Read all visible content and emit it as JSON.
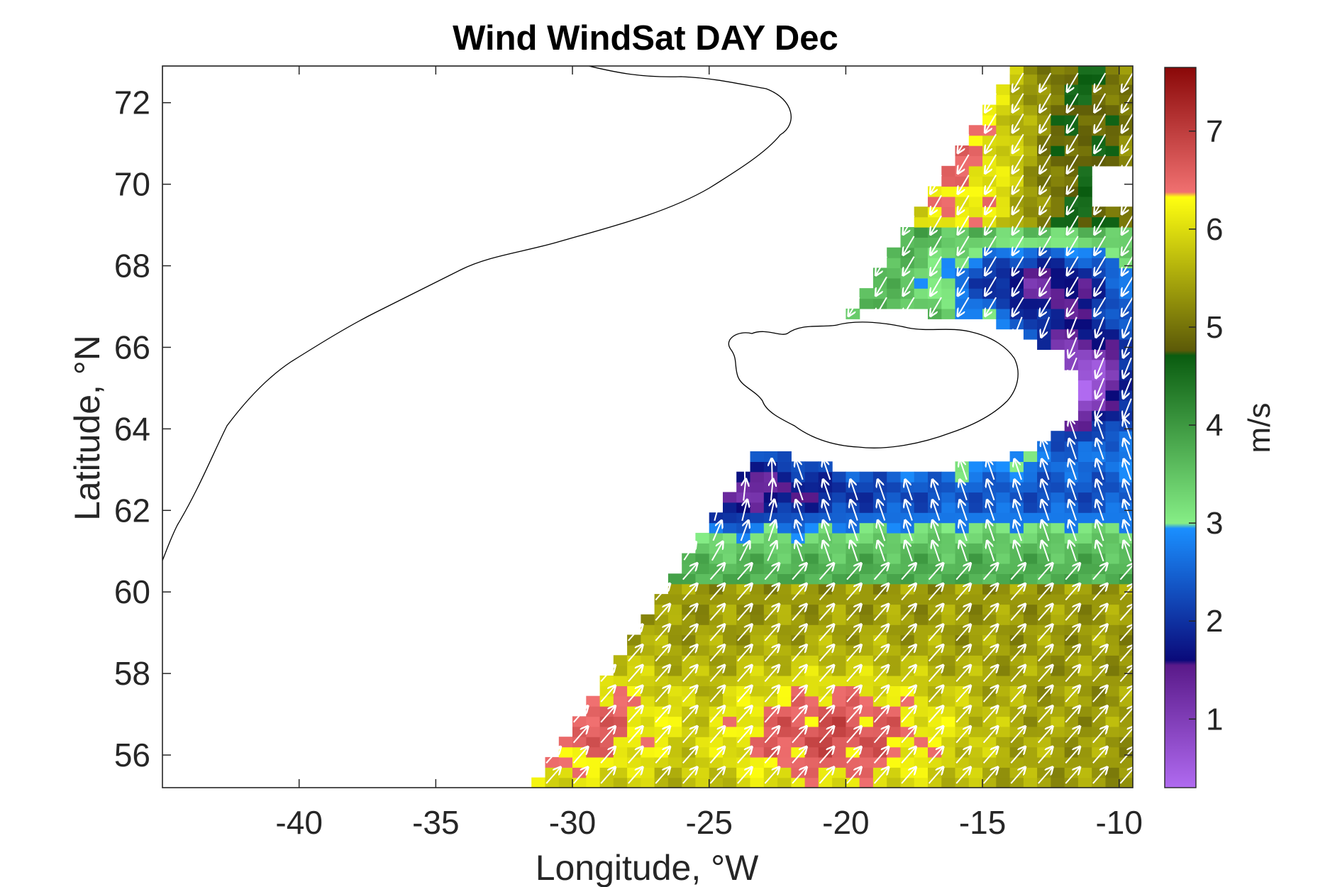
{
  "title": "Wind WindSat DAY Dec",
  "x_axis": {
    "label": "Longitude, °W",
    "ticks": [
      "-40",
      "-35",
      "-30",
      "-25",
      "-20",
      "-15",
      "-10"
    ],
    "range": [
      -45,
      -9.5
    ]
  },
  "y_axis": {
    "label": "Latitude, °N",
    "ticks": [
      "56",
      "58",
      "60",
      "62",
      "64",
      "66",
      "68",
      "70",
      "72"
    ],
    "range": [
      55.2,
      72.9
    ]
  },
  "colorbar": {
    "label": "m/s",
    "ticks": [
      "1",
      "2",
      "3",
      "4",
      "5",
      "6",
      "7"
    ],
    "range": [
      0.3,
      7.65
    ],
    "bands": [
      {
        "from": 0.3,
        "to": 1.6,
        "colors": [
          "#b06af0",
          "#5a1a8a"
        ]
      },
      {
        "from": 1.6,
        "to": 3.0,
        "colors": [
          "#0a0a7a",
          "#1a8fff"
        ]
      },
      {
        "from": 3.0,
        "to": 4.8,
        "colors": [
          "#86ee86",
          "#0a5c10"
        ]
      },
      {
        "from": 4.8,
        "to": 6.4,
        "colors": [
          "#5c5a08",
          "#ffff10"
        ]
      },
      {
        "from": 6.4,
        "to": 7.65,
        "colors": [
          "#f07070",
          "#8a0808"
        ]
      }
    ]
  },
  "map_features": {
    "land": [
      "Greenland",
      "Iceland"
    ],
    "wind_vectors": "white arrows over a gridded wind-speed field"
  }
}
